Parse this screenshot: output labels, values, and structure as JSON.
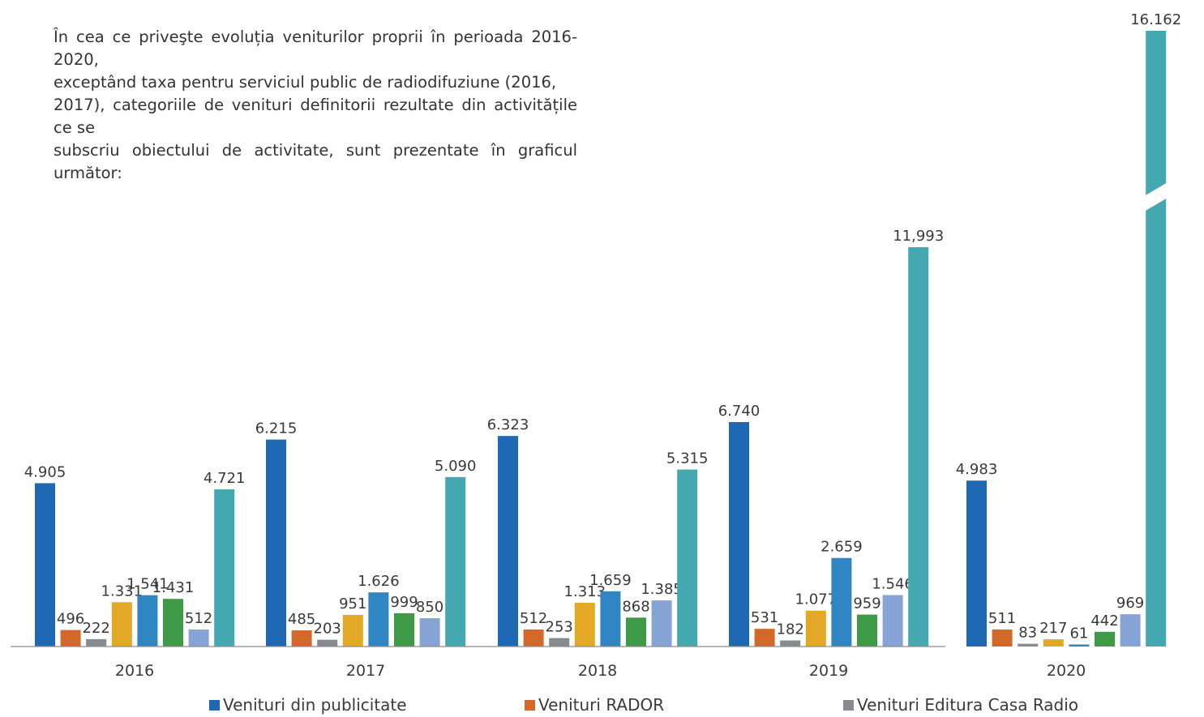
{
  "intro": {
    "lines": [
      "În cea ce priveşte evoluția veniturilor proprii în perioada 2016-2020,",
      "exceptând taxa pentru serviciul public de radiodifuziune (2016,",
      "2017), categoriile de venituri definitorii rezultate din activitățile ce se",
      "subscriu obiectului de activitate, sunt prezentate în graficul următor:"
    ]
  },
  "chart_data": {
    "type": "bar",
    "title": "",
    "xlabel": "",
    "ylabel": "",
    "grid": false,
    "legend_position": "bottom",
    "categories": [
      "2016",
      "2017",
      "2018",
      "2019",
      "2020"
    ],
    "series": [
      {
        "name": "Venituri din publicitate",
        "color": "#1f69b4",
        "values": [
          4905,
          6215,
          6323,
          6740,
          4983
        ],
        "labels": [
          "4.905",
          "6.215",
          "6.323",
          "6.740",
          "4.983"
        ]
      },
      {
        "name": "Venituri RADOR",
        "color": "#d2692a",
        "values": [
          496,
          485,
          512,
          531,
          511
        ],
        "labels": [
          "496",
          "485",
          "512",
          "531",
          "511"
        ]
      },
      {
        "name": "Venituri Editura Casa Radio",
        "color": "#868b8f",
        "values": [
          222,
          203,
          253,
          182,
          83
        ],
        "labels": [
          "222",
          "203",
          "253",
          "182",
          "83"
        ]
      },
      {
        "color": "#e3a926",
        "values": [
          1331,
          951,
          1313,
          1077,
          217
        ],
        "labels": [
          "1.331",
          "951",
          "1.313",
          "1.077",
          "217"
        ]
      },
      {
        "color": "#2f86c3",
        "values": [
          1541,
          1626,
          1659,
          2659,
          61
        ],
        "labels": [
          "1.541",
          "1.626",
          "1.659",
          "2.659",
          "61"
        ]
      },
      {
        "color": "#3f9a48",
        "values": [
          1431,
          999,
          868,
          959,
          442
        ],
        "labels": [
          "1.431",
          "999",
          "868",
          "959",
          "442"
        ]
      },
      {
        "color": "#86a3d6",
        "values": [
          512,
          850,
          1385,
          1546,
          969
        ],
        "labels": [
          "512",
          "850",
          "1.385",
          "1.546",
          "969"
        ]
      },
      {
        "color": "#44a8b0",
        "values": [
          4721,
          5090,
          5315,
          11993,
          16162
        ],
        "labels": [
          "4.721",
          "5.090",
          "5.315",
          "11,993",
          "16.162"
        ],
        "axis_break": [
          null,
          null,
          null,
          null,
          true
        ]
      }
    ]
  }
}
